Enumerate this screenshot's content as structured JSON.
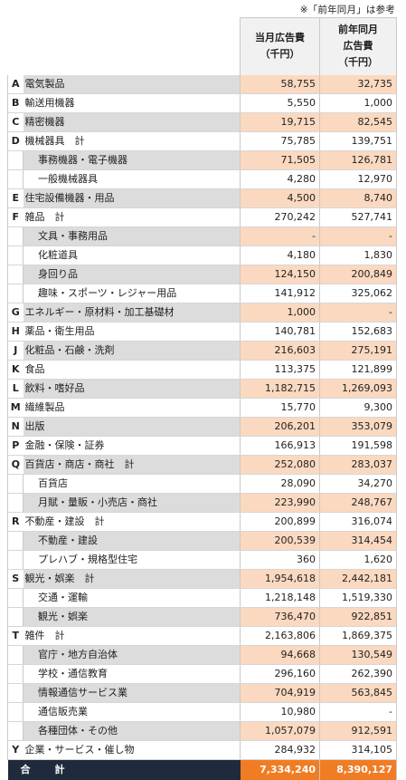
{
  "note": "※「前年同月」は参考",
  "headers": {
    "current": [
      "当月広告費",
      "（千円）"
    ],
    "previous": [
      "前年同月",
      "広告費",
      "（千円）"
    ]
  },
  "rows": [
    {
      "code": "A",
      "name": "電気製品",
      "cur": "58,755",
      "prev": "32,735",
      "sub": false,
      "shade": true
    },
    {
      "code": "B",
      "name": "輸送用機器",
      "cur": "5,550",
      "prev": "1,000",
      "sub": false,
      "shade": false
    },
    {
      "code": "C",
      "name": "精密機器",
      "cur": "19,715",
      "prev": "82,545",
      "sub": false,
      "shade": true
    },
    {
      "code": "D",
      "name": "機械器具　計",
      "cur": "75,785",
      "prev": "139,751",
      "sub": false,
      "shade": false
    },
    {
      "code": "",
      "name": "事務機器・電子機器",
      "cur": "71,505",
      "prev": "126,781",
      "sub": true,
      "shade": true
    },
    {
      "code": "",
      "name": "一般機械器具",
      "cur": "4,280",
      "prev": "12,970",
      "sub": true,
      "shade": false
    },
    {
      "code": "E",
      "name": "住宅設備機器・用品",
      "cur": "4,500",
      "prev": "8,740",
      "sub": false,
      "shade": true
    },
    {
      "code": "F",
      "name": "雑品　計",
      "cur": "270,242",
      "prev": "527,741",
      "sub": false,
      "shade": false
    },
    {
      "code": "",
      "name": "文具・事務用品",
      "cur": "-",
      "prev": "-",
      "sub": true,
      "shade": true
    },
    {
      "code": "",
      "name": "化粧道具",
      "cur": "4,180",
      "prev": "1,830",
      "sub": true,
      "shade": false
    },
    {
      "code": "",
      "name": "身回り品",
      "cur": "124,150",
      "prev": "200,849",
      "sub": true,
      "shade": true
    },
    {
      "code": "",
      "name": "趣味・スポーツ・レジャー用品",
      "cur": "141,912",
      "prev": "325,062",
      "sub": true,
      "shade": false
    },
    {
      "code": "G",
      "name": "エネルギー・原材料・加工基礎材",
      "cur": "1,000",
      "prev": "-",
      "sub": false,
      "shade": true
    },
    {
      "code": "H",
      "name": "薬品・衛生用品",
      "cur": "140,781",
      "prev": "152,683",
      "sub": false,
      "shade": false
    },
    {
      "code": "J",
      "name": "化粧品・石鹸・洗剤",
      "cur": "216,603",
      "prev": "275,191",
      "sub": false,
      "shade": true
    },
    {
      "code": "K",
      "name": "食品",
      "cur": "113,375",
      "prev": "121,899",
      "sub": false,
      "shade": false
    },
    {
      "code": "L",
      "name": "飲料・嗜好品",
      "cur": "1,182,715",
      "prev": "1,269,093",
      "sub": false,
      "shade": true
    },
    {
      "code": "M",
      "name": "繊維製品",
      "cur": "15,770",
      "prev": "9,300",
      "sub": false,
      "shade": false
    },
    {
      "code": "N",
      "name": "出版",
      "cur": "206,201",
      "prev": "353,079",
      "sub": false,
      "shade": true
    },
    {
      "code": "P",
      "name": "金融・保険・証券",
      "cur": "166,913",
      "prev": "191,598",
      "sub": false,
      "shade": false
    },
    {
      "code": "Q",
      "name": "百貨店・商店・商社　計",
      "cur": "252,080",
      "prev": "283,037",
      "sub": false,
      "shade": true
    },
    {
      "code": "",
      "name": "百貨店",
      "cur": "28,090",
      "prev": "34,270",
      "sub": true,
      "shade": false
    },
    {
      "code": "",
      "name": "月賦・量販・小売店・商社",
      "cur": "223,990",
      "prev": "248,767",
      "sub": true,
      "shade": true
    },
    {
      "code": "R",
      "name": "不動産・建設　計",
      "cur": "200,899",
      "prev": "316,074",
      "sub": false,
      "shade": false
    },
    {
      "code": "",
      "name": "不動産・建設",
      "cur": "200,539",
      "prev": "314,454",
      "sub": true,
      "shade": true
    },
    {
      "code": "",
      "name": "プレハブ・規格型住宅",
      "cur": "360",
      "prev": "1,620",
      "sub": true,
      "shade": false
    },
    {
      "code": "S",
      "name": "観光・娯楽　計",
      "cur": "1,954,618",
      "prev": "2,442,181",
      "sub": false,
      "shade": true
    },
    {
      "code": "",
      "name": "交通・運輸",
      "cur": "1,218,148",
      "prev": "1,519,330",
      "sub": true,
      "shade": false
    },
    {
      "code": "",
      "name": "観光・娯楽",
      "cur": "736,470",
      "prev": "922,851",
      "sub": true,
      "shade": true
    },
    {
      "code": "T",
      "name": "雑件　計",
      "cur": "2,163,806",
      "prev": "1,869,375",
      "sub": false,
      "shade": false
    },
    {
      "code": "",
      "name": "官庁・地方自治体",
      "cur": "94,668",
      "prev": "130,549",
      "sub": true,
      "shade": true
    },
    {
      "code": "",
      "name": "学校・通信教育",
      "cur": "296,160",
      "prev": "262,390",
      "sub": true,
      "shade": false
    },
    {
      "code": "",
      "name": "情報通信サービス業",
      "cur": "704,919",
      "prev": "563,845",
      "sub": true,
      "shade": true
    },
    {
      "code": "",
      "name": "通信販売業",
      "cur": "10,980",
      "prev": "-",
      "sub": true,
      "shade": false
    },
    {
      "code": "",
      "name": "各種団体・その他",
      "cur": "1,057,079",
      "prev": "912,591",
      "sub": true,
      "shade": true
    },
    {
      "code": "Y",
      "name": "企業・サービス・催し物",
      "cur": "284,932",
      "prev": "314,105",
      "sub": false,
      "shade": false
    }
  ],
  "total": {
    "label": "合　計",
    "cur": "7,334,240",
    "prev": "8,390,127"
  }
}
